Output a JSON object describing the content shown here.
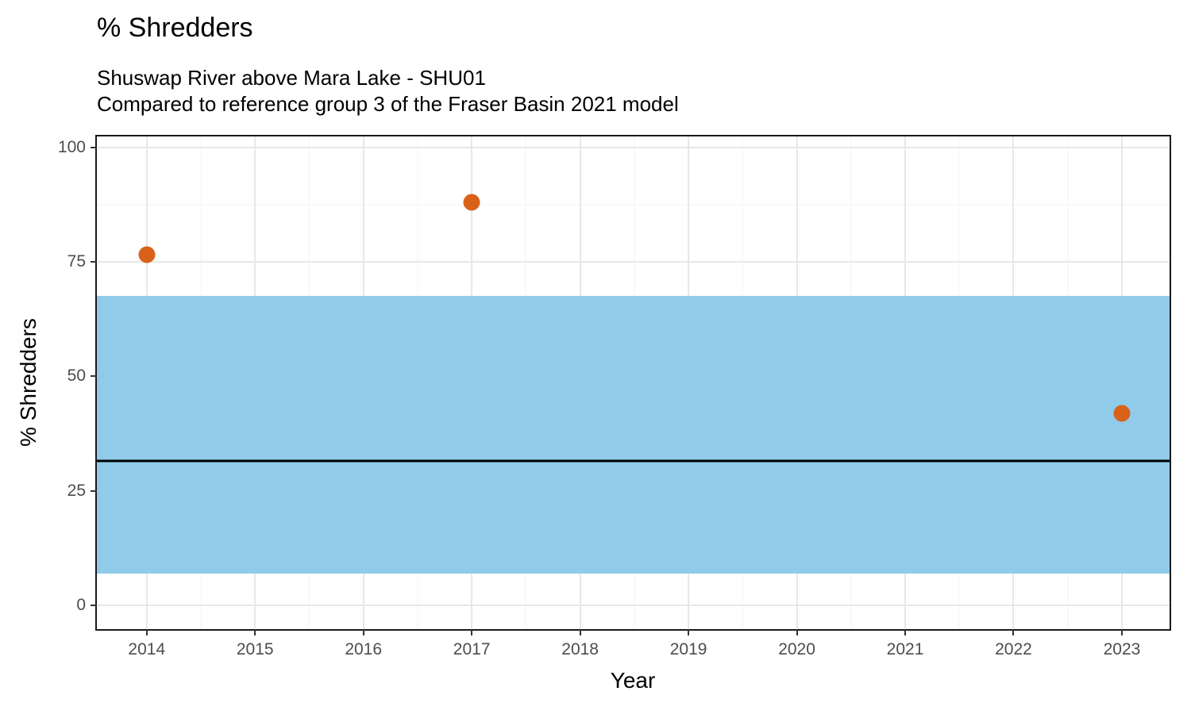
{
  "chart_data": {
    "type": "scatter",
    "title": "% Shredders",
    "subtitle": [
      "Shuswap River above Mara Lake - SHU01",
      "Compared to reference group 3 of the Fraser Basin 2021 model"
    ],
    "xlabel": "Year",
    "ylabel": "% Shredders",
    "x_ticks": [
      2014,
      2015,
      2016,
      2017,
      2018,
      2019,
      2020,
      2021,
      2022,
      2023
    ],
    "y_ticks": [
      0,
      25,
      50,
      75,
      100
    ],
    "xlim": [
      2013.54,
      2023.44
    ],
    "ylim": [
      -5.2,
      102.4
    ],
    "points": [
      {
        "x": 2014,
        "y": 76.5
      },
      {
        "x": 2017,
        "y": 88
      },
      {
        "x": 2023,
        "y": 42
      }
    ],
    "reference_band": {
      "ymin": 7,
      "ymax": 67.5
    },
    "reference_line": {
      "y": 31.5
    },
    "grid": true,
    "legend": false,
    "colors": {
      "point": "#D9621B",
      "band": "#90CBEA",
      "reference_line": "#000000",
      "panel_background": "#FFFFFF",
      "grid_major": "#E7E7E7",
      "grid_minor": "#F3F3F3",
      "axis_text": "#4D4D4D",
      "panel_border": "#1A1A1A"
    }
  }
}
